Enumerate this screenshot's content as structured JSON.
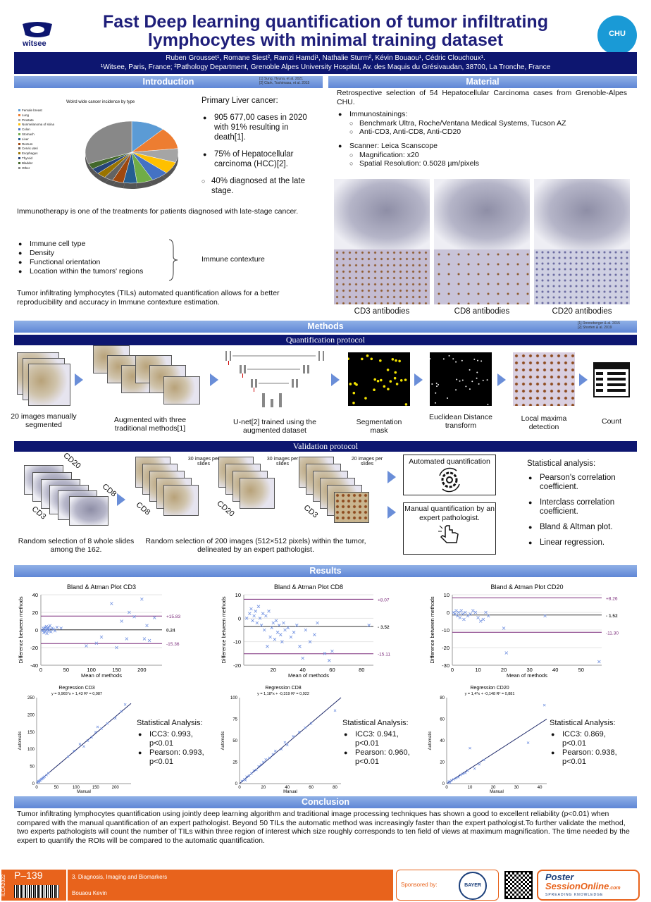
{
  "header": {
    "title_line1": "Fast Deep learning quantification of tumor infiltrating",
    "title_line2": "lymphocytes with minimal training dataset",
    "logo_left": "witsee",
    "logo_right": "CHU",
    "authors": "Ruben Grousset¹, Romane Siest², Ramzi Hamdi¹,  Nathalie Sturm², Kévin Bouaou¹, Cédric Clouchoux¹.",
    "affiliations": "¹Witsee, Paris, France; ²Pathology Department, Grenoble Alpes University Hospital, Av. des Maquis du Grésivaudan, 38700, La Tronche, France"
  },
  "intro": {
    "title": "Introduction",
    "refs": [
      "[1] Sung, Hyuna, et al. 2021",
      "[2] Clark, Toshimasa, et al. 2015"
    ],
    "pie_title": "Wolrd wide cancer incidence by type",
    "pie_legend": [
      "Female breast",
      "Lung",
      "Prostate",
      "Nonmelanoma of skina",
      "Colon",
      "Stomach",
      "Liver",
      "Rectum",
      "Cervix uteri",
      "Esophagus",
      "Thyroid",
      "Bladder",
      "Other"
    ],
    "liver_head": "Primary Liver cancer:",
    "liver_b1": "905 677,00 cases in 2020 with 91% resulting in death[1].",
    "liver_b2": "75% of Hepatocellular carcinoma (HCC)[2].",
    "liver_sub": "40% diagnosed at the late stage.",
    "immuno": "Immunotherapy is one of the treatments for patients diagnosed with late-stage cancer.",
    "contexture_items": [
      "Immune cell type",
      "Density",
      "Functional orientation",
      "Location within the tumors' regions"
    ],
    "contexture_label": "Immune contexture",
    "tils": "Tumor infiltrating lymphocytes (TILs) automated quantification allows for a better reproducibility and accuracy in Immune contexture estimation."
  },
  "material": {
    "title": "Material",
    "intro": "Retrospective selection of 54 Hepatocellular Carcinoma cases from Grenoble-Alpes CHU.",
    "b1": "Immunostainings:",
    "b1_sub": [
      "Benchmark Ultra, Roche/Ventana Medical Systems, Tucson AZ",
      "Anti-CD3, Anti-CD8, Anti-CD20"
    ],
    "b2": "Scanner: Leica Scanscope",
    "b2_sub": [
      "Magnification: x20",
      "Spatial Resolution: 0.5028 µm/pixels"
    ],
    "captions": [
      "CD3 antibodies",
      "CD8 antibodies",
      "CD20 antibodies"
    ]
  },
  "methods": {
    "title": "Methods",
    "refs": [
      "[1] Ronneberger & al. 2015",
      "[2] Shorten & al. 2019"
    ],
    "quant_title": "Quantification protocol",
    "steps": [
      "20 images manually segmented",
      "Augmented with three traditional methods[1]",
      "U-net[2] trained using the augmented dataset",
      "Segmentation mask",
      "Euclidean Distance transform",
      "Local maxima detection",
      "Count"
    ],
    "valid_title": "Validation protocol",
    "per_slide": [
      "30 images per slides",
      "30 images per slides",
      "20 images per slides"
    ],
    "stain_labels": [
      "CD20",
      "CD8",
      "CD3"
    ],
    "cap_random_slides": "Random selection of 8 whole slides among the 162.",
    "cap_random_images": "Random selection of 200 images (512×512 pixels) within the tumor, delineated by an expert pathologist.",
    "auto_quant": "Automated quantification",
    "manual_quant": "Manual quantification by an expert pathologist.",
    "stat_head": "Statistical analysis:",
    "stat_items": [
      "Pearson's correlation coefficient.",
      "Interclass correlation coefficient.",
      "Bland & Altman plot.",
      "Linear regression."
    ]
  },
  "results": {
    "title": "Results",
    "stat_head": "Statistical Analysis:"
  },
  "chart_data": [
    {
      "type": "scatter",
      "title": "Bland & Atman Plot CD3",
      "xlabel": "Mean of methods",
      "ylabel": "Difference between methods",
      "xlim": [
        0,
        240
      ],
      "ylim": [
        -40,
        40
      ],
      "xticks": [
        0,
        50,
        100,
        150,
        200
      ],
      "yticks": [
        -40,
        -20,
        0,
        20,
        40
      ],
      "lines": [
        {
          "label": "+15.83",
          "y": 15.83
        },
        {
          "label": "0.24",
          "y": 0.24
        },
        {
          "label": "-15.36",
          "y": -15.36
        }
      ],
      "x": [
        2,
        4,
        5,
        6,
        7,
        8,
        9,
        10,
        11,
        12,
        13,
        14,
        15,
        16,
        17,
        18,
        20,
        22,
        25,
        28,
        32,
        40,
        90,
        110,
        120,
        140,
        150,
        160,
        170,
        175,
        185,
        200,
        205,
        210,
        215,
        225
      ],
      "y": [
        0,
        -1,
        2,
        -3,
        1,
        3,
        -2,
        0,
        4,
        -4,
        2,
        1,
        -1,
        3,
        0,
        5,
        -2,
        2,
        1,
        -1,
        3,
        2,
        -18,
        -15,
        -8,
        30,
        -20,
        10,
        -10,
        20,
        15,
        35,
        -10,
        5,
        -12,
        14
      ]
    },
    {
      "type": "scatter",
      "title": "Bland & Atman Plot CD8",
      "xlabel": "Mean of methods",
      "ylabel": "Difference between methods",
      "xlim": [
        0,
        88
      ],
      "ylim": [
        -20,
        10
      ],
      "xticks": [
        20,
        40,
        60,
        80
      ],
      "yticks": [
        -20,
        -10,
        0,
        10
      ],
      "lines": [
        {
          "label": "+8.07",
          "y": 8.07
        },
        {
          "label": "- 3.52",
          "y": -3.52
        },
        {
          "label": "-15.11",
          "y": -15.11
        }
      ],
      "x": [
        2,
        4,
        5,
        6,
        7,
        8,
        9,
        10,
        11,
        12,
        13,
        14,
        15,
        16,
        17,
        18,
        19,
        20,
        21,
        22,
        23,
        24,
        25,
        26,
        27,
        28,
        30,
        32,
        34,
        36,
        38,
        40,
        42,
        45,
        48,
        50,
        55,
        58,
        60,
        85
      ],
      "y": [
        0,
        2,
        4,
        -1,
        1,
        3,
        -2,
        5,
        0,
        -3,
        2,
        -5,
        1,
        -12,
        3,
        -8,
        -4,
        -2,
        -9,
        -1,
        -6,
        -3,
        -7,
        -10,
        -2,
        -5,
        -4,
        -8,
        -6,
        -3,
        -12,
        -17,
        -5,
        -10,
        -7,
        -2,
        -15,
        -18,
        -14,
        -3
      ]
    },
    {
      "type": "scatter",
      "title": "Bland & Atman Plot CD20",
      "xlabel": "Mean of methods",
      "ylabel": "Difference between methods",
      "xlim": [
        0,
        58
      ],
      "ylim": [
        -30,
        10
      ],
      "xticks": [
        0,
        10,
        20,
        30,
        40,
        50
      ],
      "yticks": [
        -30,
        -20,
        -10,
        0,
        10
      ],
      "lines": [
        {
          "label": "+8.26",
          "y": 8.26
        },
        {
          "label": "- 1.52",
          "y": -1.52
        },
        {
          "label": "-11.30",
          "y": -11.3
        }
      ],
      "x": [
        0.5,
        1,
        1.5,
        2,
        2.5,
        3,
        3.5,
        4,
        4.5,
        5,
        6,
        7,
        8,
        9,
        10,
        11,
        12,
        13,
        14,
        20,
        21,
        36,
        57
      ],
      "y": [
        0,
        -1,
        1,
        -2,
        0,
        -3,
        1,
        -1,
        -4,
        0,
        -2,
        -1,
        1,
        0,
        -3,
        -5,
        -4,
        0,
        -2,
        -9,
        -23,
        -2,
        -28
      ]
    },
    {
      "type": "scatter",
      "title": "Regression CD3",
      "equation": "y = 0,965*x + 1,43 R² = 0,987",
      "xlabel": "Manual",
      "ylabel": "Automatic",
      "xlim": [
        0,
        240
      ],
      "ylim": [
        0,
        250
      ],
      "xticks": [
        0,
        50,
        100,
        150,
        200
      ],
      "yticks": [
        0,
        50,
        100,
        150,
        200,
        250
      ],
      "stat_items": [
        "ICC3:  0.993, p<0.01",
        "Pearson: 0.993, p<0.01"
      ],
      "x": [
        2,
        4,
        5,
        6,
        8,
        10,
        12,
        14,
        16,
        18,
        20,
        25,
        30,
        80,
        95,
        110,
        120,
        130,
        140,
        150,
        155,
        165,
        180,
        200,
        215,
        225
      ],
      "y": [
        3,
        5,
        6,
        7,
        9,
        10,
        13,
        14,
        16,
        18,
        20,
        25,
        30,
        78,
        95,
        115,
        108,
        125,
        135,
        150,
        165,
        160,
        175,
        190,
        210,
        230
      ]
    },
    {
      "type": "scatter",
      "title": "Regression CD8",
      "equation": "y = 1,18*x + -0,319 R² = 0,922",
      "xlabel": "Manual",
      "ylabel": "Automatic",
      "xlim": [
        0,
        85
      ],
      "ylim": [
        0,
        100
      ],
      "xticks": [
        0,
        20,
        40,
        60,
        80
      ],
      "yticks": [
        0,
        25,
        50,
        75,
        100
      ],
      "stat_items": [
        "ICC3:  0.941, p<0.01",
        "Pearson: 0.960, p<0.01"
      ],
      "x": [
        2,
        4,
        5,
        6,
        8,
        10,
        12,
        14,
        16,
        18,
        20,
        22,
        25,
        28,
        30,
        35,
        38,
        40,
        45,
        50,
        55,
        60,
        80
      ],
      "y": [
        3,
        5,
        4,
        8,
        9,
        12,
        15,
        16,
        20,
        22,
        25,
        28,
        30,
        34,
        38,
        40,
        48,
        45,
        55,
        60,
        65,
        70,
        85
      ]
    },
    {
      "type": "scatter",
      "title": "Regression CD20",
      "equation": "y = 1,4*x + -0,148 R² = 0,881",
      "xlabel": "Manual",
      "ylabel": "Automatic",
      "xlim": [
        0,
        43
      ],
      "ylim": [
        0,
        80
      ],
      "xticks": [
        0,
        10,
        20,
        30,
        40
      ],
      "yticks": [
        0,
        20,
        40,
        60,
        80
      ],
      "stat_items": [
        "ICC3:  0.869, p<0.01",
        "Pearson: 0.938, p<0.01"
      ],
      "x": [
        0.5,
        1,
        1.5,
        2,
        3,
        4,
        5,
        6,
        7,
        8,
        9,
        10,
        12,
        14,
        16,
        35,
        42
      ],
      "y": [
        1,
        2,
        1,
        3,
        4,
        5,
        6,
        8,
        9,
        10,
        12,
        33,
        14,
        18,
        22,
        38,
        73
      ]
    }
  ],
  "conclusion": {
    "title": "Conclusion",
    "text": "Tumor infiltrating lymphocytes quantification using jointly deep learning algorithm and traditional image processing techniques has shown a good to excellent reliability (p<0.01) when compared with the manual quantification of an expert pathologist. Beyond 50 TILs the automatic method was increasingly faster than the expert pathologist.To further validate the method, two experts pathologists will count the number of TILs within three region of interest which size roughly corresponds to ten field of views at maximum magnification. The time needed by the expert to quantify the ROIs will be compared to the automatic quantification."
  },
  "footer": {
    "side_code": "ILCA2022",
    "poster_id": "P–139",
    "category": "3. Diagnosis, Imaging and Biomarkers",
    "author": "Bouaou Kevin",
    "sponsored": "Sponsored by:",
    "bayer": "BAYER",
    "pso_line1": "Poster",
    "pso_line2": "SessionOnline",
    "pso_sub": "SPREADING KNOWLEDGE",
    "pso_com": ".com",
    "color_orange": "#e8631c"
  }
}
